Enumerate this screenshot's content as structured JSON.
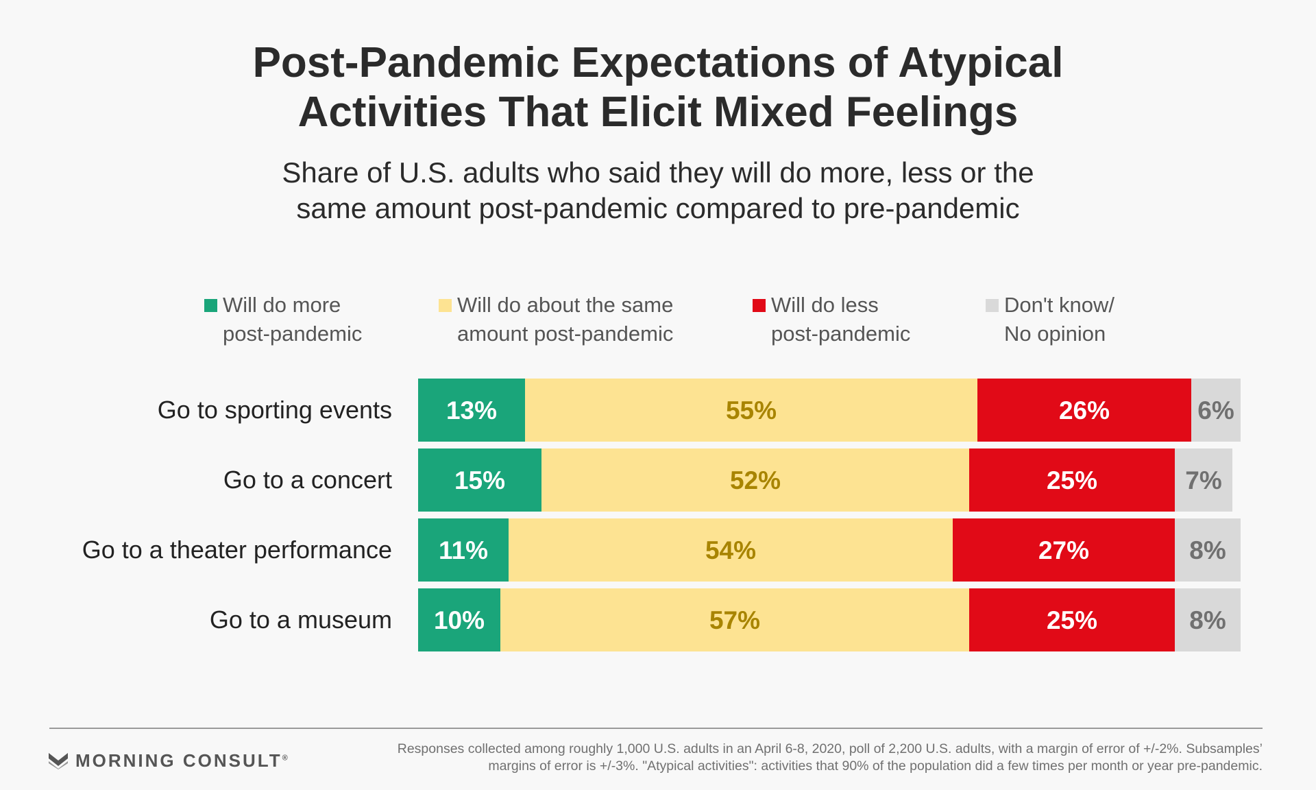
{
  "header": {
    "title_lines": [
      "Post-Pandemic Expectations of Atypical",
      "Activities That Elicit Mixed Feelings"
    ],
    "subtitle_lines": [
      "Share of U.S. adults who said they will do more, less or the",
      "same amount post-pandemic compared to pre-pandemic"
    ]
  },
  "legend": [
    {
      "lines": [
        "Will do more",
        "post-pandemic"
      ],
      "color": "#1aa57a"
    },
    {
      "lines": [
        "Will do about the same",
        "amount post-pandemic"
      ],
      "color": "#fde392"
    },
    {
      "lines": [
        "Will do less",
        "post-pandemic"
      ],
      "color": "#e10a17"
    },
    {
      "lines": [
        "Don't know/",
        "No opinion"
      ],
      "color": "#d9d9d9"
    }
  ],
  "chart_data": {
    "type": "bar",
    "orientation": "horizontal",
    "stacked": true,
    "categories": [
      "Go to sporting events",
      "Go to a concert",
      "Go to a theater performance",
      "Go to a museum"
    ],
    "series": [
      {
        "name": "Will do more post-pandemic",
        "color": "#1aa57a",
        "label_color": "#ffffff",
        "values": [
          13,
          15,
          11,
          10
        ]
      },
      {
        "name": "Will do about the same amount post-pandemic",
        "color": "#fde392",
        "label_color": "#a88400",
        "values": [
          55,
          52,
          54,
          57
        ]
      },
      {
        "name": "Will do less post-pandemic",
        "color": "#e10a17",
        "label_color": "#ffffff",
        "values": [
          26,
          25,
          27,
          25
        ]
      },
      {
        "name": "Don't know/No opinion",
        "color": "#d9d9d9",
        "label_color": "#707070",
        "values": [
          6,
          7,
          8,
          8
        ]
      }
    ],
    "value_suffix": "%",
    "xlim": [
      0,
      100
    ],
    "legend_position": "top"
  },
  "footer": {
    "brand": "MORNING CONSULT",
    "brand_mark": "®",
    "note_lines": [
      "Responses collected among roughly 1,000 U.S. adults in an April 6-8, 2020, poll of 2,200 U.S. adults, with a margin of error of +/-2%. Subsamples’",
      "margins of error is +/-3%. \"Atypical activities\": activities that 90% of the population did a few times per month or year pre-pandemic."
    ]
  }
}
